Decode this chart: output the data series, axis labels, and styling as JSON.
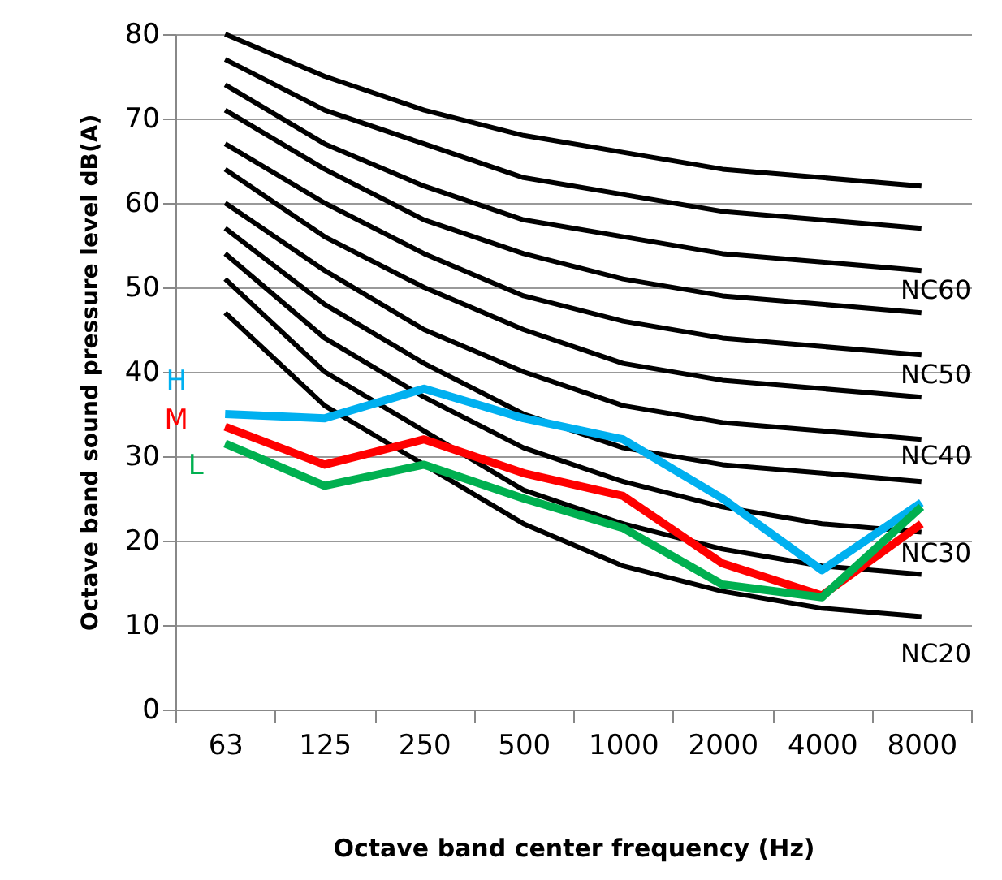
{
  "chart_data": {
    "type": "line",
    "xlabel": "Octave band center frequency (Hz)",
    "ylabel": "Octave band sound pressure level dB(A)",
    "categories": [
      "63",
      "125",
      "250",
      "500",
      "1000",
      "2000",
      "4000",
      "8000"
    ],
    "ylim": [
      0,
      80
    ],
    "yticks": [
      0,
      10,
      20,
      30,
      40,
      50,
      60,
      70,
      80
    ],
    "grid": "y",
    "marker": "none",
    "line_style": "solid",
    "series": [
      {
        "color": "#000000",
        "values": [
          80,
          75,
          71,
          68,
          66,
          64,
          63,
          62
        ]
      },
      {
        "color": "#000000",
        "values": [
          77,
          71,
          67,
          63,
          61,
          59,
          58,
          57
        ]
      },
      {
        "color": "#000000",
        "values": [
          74,
          67,
          62,
          58,
          56,
          54,
          53,
          52
        ]
      },
      {
        "color": "#000000",
        "values": [
          71,
          64,
          58,
          54,
          51,
          49,
          48,
          47
        ]
      },
      {
        "color": "#000000",
        "values": [
          67,
          60,
          54,
          49,
          46,
          44,
          43,
          42
        ]
      },
      {
        "color": "#000000",
        "values": [
          64,
          56,
          50,
          45,
          41,
          39,
          38,
          37
        ]
      },
      {
        "color": "#000000",
        "values": [
          60,
          52,
          45,
          40,
          36,
          34,
          33,
          32
        ]
      },
      {
        "color": "#000000",
        "values": [
          57,
          48,
          41,
          35,
          31,
          29,
          28,
          27
        ]
      },
      {
        "color": "#000000",
        "values": [
          54,
          44,
          37,
          31,
          27,
          24,
          22,
          21
        ]
      },
      {
        "color": "#000000",
        "values": [
          51,
          40,
          33,
          26,
          22,
          19,
          17,
          16
        ]
      },
      {
        "color": "#000000",
        "values": [
          47,
          36,
          29,
          22,
          17,
          14,
          12,
          11
        ]
      },
      {
        "name": "H",
        "color": "#00b0f0",
        "values": [
          35,
          34.5,
          38,
          34.5,
          32,
          25,
          16.5,
          24.5
        ]
      },
      {
        "name": "M",
        "color": "#ff0000",
        "values": [
          33.5,
          29,
          32,
          28,
          25.3,
          17.3,
          13.5,
          22
        ]
      },
      {
        "name": "L",
        "color": "#00b050",
        "values": [
          31.5,
          26.5,
          29,
          25,
          21.5,
          14.8,
          13.3,
          24
        ]
      }
    ],
    "annotations": [
      "NC60",
      "NC50",
      "NC40",
      "NC30",
      "NC20"
    ]
  }
}
